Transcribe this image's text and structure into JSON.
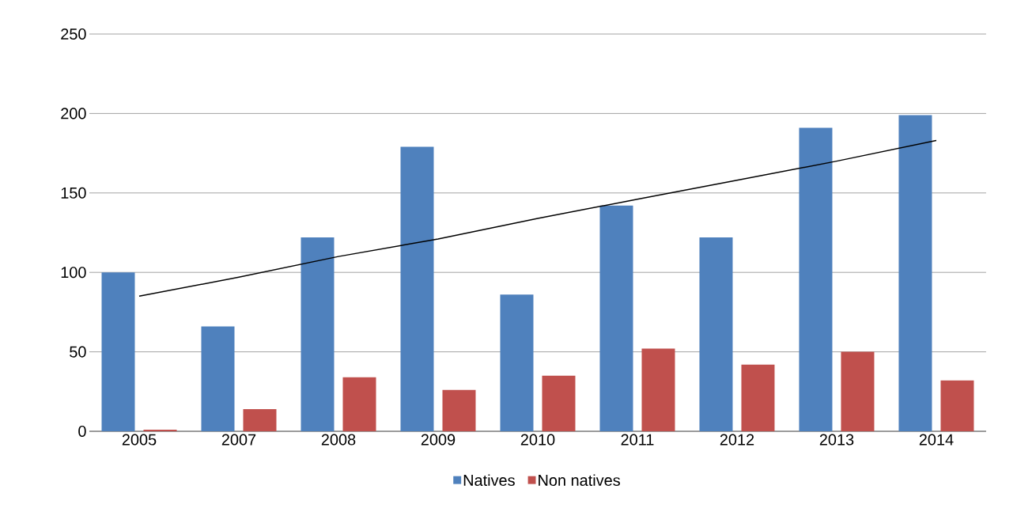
{
  "chart_data": {
    "type": "bar",
    "categories": [
      "2005",
      "2007",
      "2008",
      "2009",
      "2010",
      "2011",
      "2012",
      "2013",
      "2014"
    ],
    "series": [
      {
        "name": "Natives",
        "color": "#4f81bd",
        "values": [
          100,
          66,
          122,
          179,
          86,
          142,
          122,
          191,
          199
        ]
      },
      {
        "name": "Non natives",
        "color": "#c0504d",
        "values": [
          1,
          14,
          34,
          26,
          35,
          52,
          42,
          50,
          32
        ]
      },
      {
        "type": "line",
        "color": "#000000",
        "values": [
          85,
          97,
          110,
          121,
          134,
          146,
          158,
          170,
          183
        ]
      }
    ],
    "ylim": [
      0,
      250
    ],
    "yticks": [
      0,
      50,
      100,
      150,
      200,
      250
    ],
    "grid": "y",
    "legend": "bottom"
  }
}
